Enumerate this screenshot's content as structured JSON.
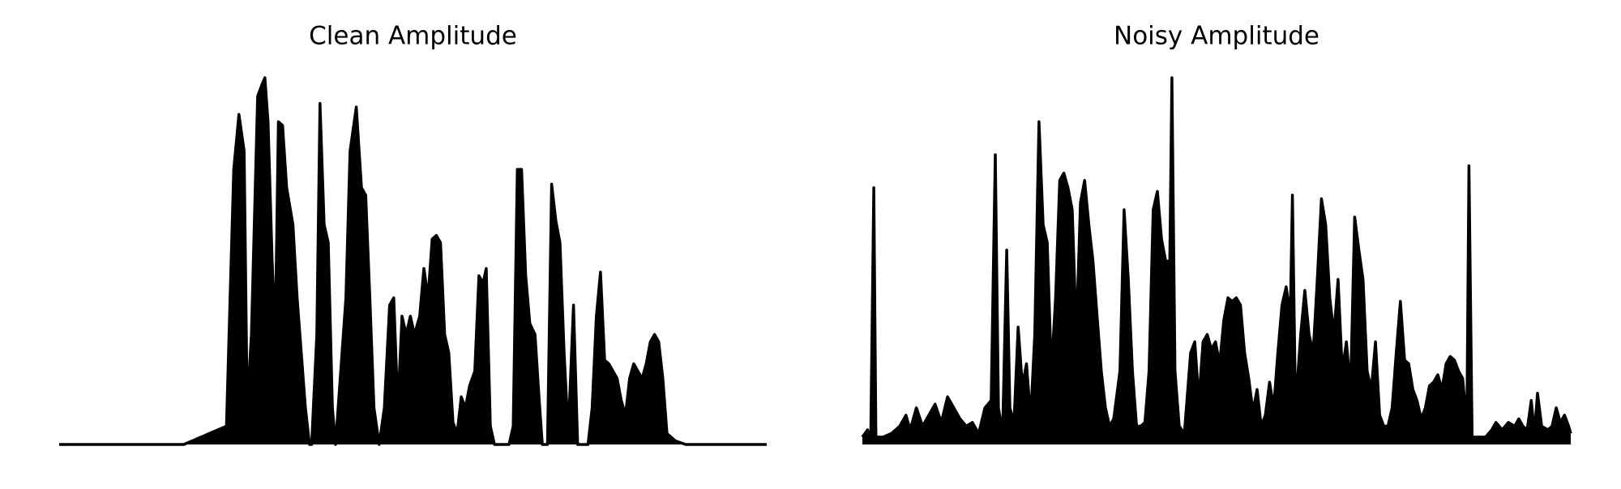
{
  "chart_data": [
    {
      "type": "line",
      "title": "Clean Amplitude",
      "color": "#000000",
      "xlim": [
        0,
        681
      ],
      "ylim": [
        0,
        1
      ],
      "x": [
        0,
        40,
        80,
        120,
        161,
        168,
        173,
        178,
        181,
        185,
        191,
        195,
        198,
        201,
        205,
        208,
        211,
        215,
        219,
        225,
        229,
        233,
        237,
        241,
        243,
        248,
        251,
        255,
        259,
        263,
        266,
        276,
        280,
        286,
        291,
        295,
        299,
        303,
        308,
        313,
        318,
        322,
        326,
        330,
        334,
        338,
        342,
        347,
        351,
        355,
        359,
        363,
        367,
        371,
        375,
        379,
        383,
        387,
        391,
        395,
        400,
        404,
        408,
        411,
        415,
        419,
        433,
        437,
        441,
        445,
        449,
        453,
        458,
        462,
        465,
        470,
        474,
        478,
        482,
        486,
        490,
        495,
        499,
        509,
        513,
        517,
        521,
        525,
        529,
        533,
        537,
        541,
        545,
        549,
        553,
        557,
        561,
        565,
        569,
        573,
        577,
        581,
        585,
        593,
        603,
        640,
        681
      ],
      "values": [
        0,
        0,
        0,
        0,
        0.05,
        0.75,
        0.9,
        0.8,
        0.1,
        0.3,
        0.95,
        0.98,
        1.0,
        0.88,
        0.5,
        0.3,
        0.88,
        0.87,
        0.7,
        0.6,
        0.4,
        0.25,
        0.1,
        0,
        0,
        0.3,
        0.93,
        0.6,
        0.55,
        0.1,
        0,
        0.4,
        0.8,
        0.92,
        0.7,
        0.68,
        0.4,
        0.1,
        0,
        0.1,
        0.38,
        0.4,
        0.1,
        0.35,
        0.3,
        0.35,
        0.3,
        0.35,
        0.48,
        0.4,
        0.56,
        0.57,
        0.55,
        0.3,
        0.25,
        0.06,
        0.03,
        0.13,
        0.1,
        0.16,
        0.2,
        0.46,
        0.44,
        0.48,
        0.05,
        0,
        0,
        0.05,
        0.75,
        0.75,
        0.46,
        0.33,
        0.3,
        0.12,
        0,
        0,
        0.71,
        0.61,
        0.55,
        0.25,
        0.03,
        0.38,
        0,
        0,
        0.1,
        0.35,
        0.47,
        0.23,
        0.22,
        0.2,
        0.18,
        0.12,
        0.08,
        0.18,
        0.22,
        0.2,
        0.18,
        0.22,
        0.28,
        0.3,
        0.28,
        0.18,
        0.03,
        0.01,
        0,
        0,
        0
      ]
    },
    {
      "type": "line",
      "title": "Noisy Amplitude",
      "color": "#000000",
      "xlim": [
        0,
        682
      ],
      "ylim": [
        0,
        1
      ],
      "x": [
        0,
        5,
        8,
        11,
        13,
        20,
        28,
        36,
        42,
        46,
        52,
        58,
        64,
        70,
        76,
        82,
        88,
        94,
        100,
        106,
        112,
        118,
        124,
        128,
        131,
        135,
        139,
        142,
        146,
        150,
        154,
        158,
        162,
        166,
        170,
        174,
        178,
        182,
        186,
        190,
        194,
        198,
        202,
        206,
        210,
        214,
        218,
        222,
        226,
        230,
        234,
        238,
        242,
        248,
        252,
        256,
        260,
        264,
        268,
        272,
        276,
        280,
        284,
        288,
        292,
        296,
        298,
        301,
        305,
        310,
        316,
        320,
        324,
        328,
        332,
        336,
        340,
        344,
        348,
        352,
        356,
        360,
        364,
        368,
        372,
        376,
        380,
        384,
        388,
        392,
        396,
        400,
        404,
        408,
        412,
        414,
        417,
        422,
        426,
        430,
        434,
        438,
        442,
        446,
        450,
        454,
        458,
        462,
        466,
        470,
        474,
        478,
        482,
        486,
        490,
        494,
        498,
        502,
        506,
        510,
        514,
        518,
        522,
        526,
        530,
        534,
        538,
        542,
        546,
        550,
        554,
        558,
        562,
        566,
        570,
        574,
        578,
        582,
        584,
        587,
        592,
        600,
        606,
        610,
        616,
        622,
        628,
        632,
        636,
        640,
        644,
        647,
        650,
        654,
        660,
        664,
        668,
        672,
        676,
        680,
        682
      ],
      "values": [
        0.02,
        0.04,
        0.01,
        0.7,
        0.02,
        0.02,
        0.03,
        0.05,
        0.08,
        0.04,
        0.1,
        0.05,
        0.08,
        0.11,
        0.06,
        0.13,
        0.1,
        0.07,
        0.05,
        0.06,
        0.03,
        0.1,
        0.12,
        0.79,
        0.1,
        0.03,
        0.53,
        0.1,
        0.06,
        0.32,
        0.16,
        0.22,
        0.07,
        0.3,
        0.88,
        0.6,
        0.55,
        0.2,
        0.4,
        0.72,
        0.74,
        0.7,
        0.64,
        0.3,
        0.66,
        0.72,
        0.6,
        0.5,
        0.35,
        0.2,
        0.1,
        0.05,
        0.07,
        0.2,
        0.64,
        0.45,
        0.2,
        0.05,
        0.05,
        0.06,
        0.2,
        0.64,
        0.69,
        0.56,
        0.5,
        0.5,
        1.0,
        0.2,
        0.05,
        0.03,
        0.25,
        0.28,
        0.12,
        0.28,
        0.3,
        0.26,
        0.28,
        0.22,
        0.34,
        0.4,
        0.39,
        0.4,
        0.38,
        0.25,
        0.18,
        0.09,
        0.15,
        0.05,
        0.08,
        0.17,
        0.1,
        0.25,
        0.38,
        0.43,
        0.35,
        0.68,
        0.1,
        0.3,
        0.42,
        0.3,
        0.25,
        0.45,
        0.67,
        0.6,
        0.4,
        0.3,
        0.45,
        0.2,
        0.28,
        0.15,
        0.62,
        0.53,
        0.45,
        0.2,
        0.15,
        0.28,
        0.08,
        0.05,
        0.05,
        0.1,
        0.25,
        0.39,
        0.23,
        0.22,
        0.15,
        0.12,
        0.07,
        0.1,
        0.16,
        0.17,
        0.19,
        0.15,
        0.22,
        0.24,
        0.23,
        0.2,
        0.18,
        0.05,
        0.76,
        0.02,
        0.02,
        0.02,
        0.04,
        0.06,
        0.04,
        0.06,
        0.05,
        0.07,
        0.05,
        0.04,
        0.12,
        0.03,
        0.14,
        0.05,
        0.04,
        0.05,
        0.1,
        0.06,
        0.08,
        0.05,
        0.03
      ]
    }
  ]
}
